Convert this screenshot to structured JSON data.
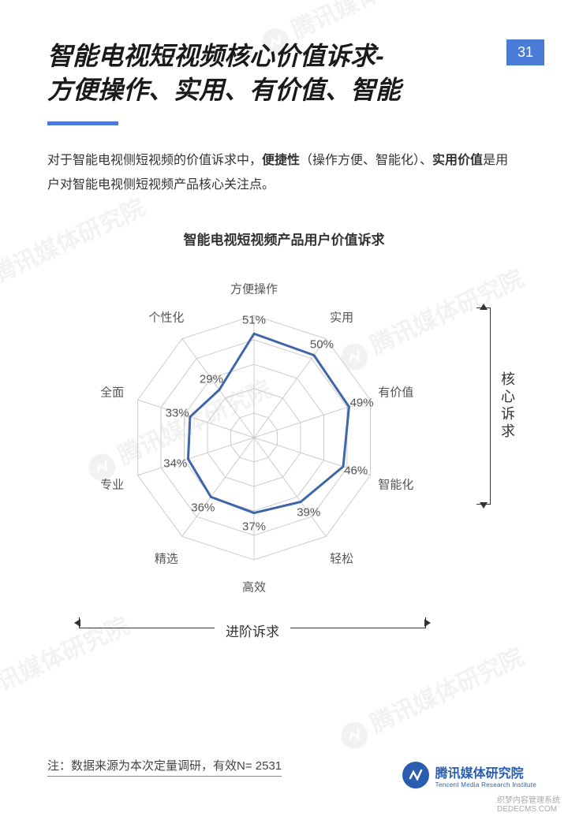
{
  "page_number": "31",
  "title_line1": "智能电视短视频核心价值诉求-",
  "title_line2": "方便操作、实用、有价值、智能",
  "description_parts": {
    "d1": "对于智能电视侧短视频的价值诉求中，",
    "d2": "便捷性",
    "d3": "（操作方便、智能化）、",
    "d4": "实用价值",
    "d5": "是用户对智能电视侧短视频产品核心关注点。"
  },
  "chart": {
    "title": "智能电视短视频产品用户价值诉求",
    "type": "radar",
    "axes": [
      {
        "label": "方便操作",
        "value": 51,
        "display": "51%"
      },
      {
        "label": "实用",
        "value": 50,
        "display": "50%"
      },
      {
        "label": "有价值",
        "value": 49,
        "display": "49%"
      },
      {
        "label": "智能化",
        "value": 46,
        "display": "46%"
      },
      {
        "label": "轻松",
        "value": 39,
        "display": "39%"
      },
      {
        "label": "高效",
        "value": 37,
        "display": "37%"
      },
      {
        "label": "精选",
        "value": 36,
        "display": "36%"
      },
      {
        "label": "专业",
        "value": 34,
        "display": "34%"
      },
      {
        "label": "全面",
        "value": 33,
        "display": "33%"
      },
      {
        "label": "个性化",
        "value": 29,
        "display": "29%"
      }
    ],
    "max_value": 60,
    "rings": 5,
    "grid_color": "#cccccc",
    "line_color": "#3e66a8",
    "line_width": 3,
    "fill_opacity": 0,
    "background_color": "#ffffff",
    "axis_label_fontsize": 15,
    "value_label_fontsize": 15
  },
  "annotations": {
    "core_demand": "核心诉求",
    "advanced_demand": "进阶诉求"
  },
  "footnote": "注：数据来源为本次定量调研，有效N= 2531",
  "brand": {
    "cn": "腾讯媒体研究院",
    "en": "Tencent Media Research Institute"
  },
  "watermark_text": "腾讯媒体研究院",
  "small_credit_1": "织梦内容管理系统",
  "small_credit_2": "DEDECMS.COM",
  "colors": {
    "accent": "#4a7bd6",
    "brand": "#2a5db0",
    "text": "#333333"
  }
}
